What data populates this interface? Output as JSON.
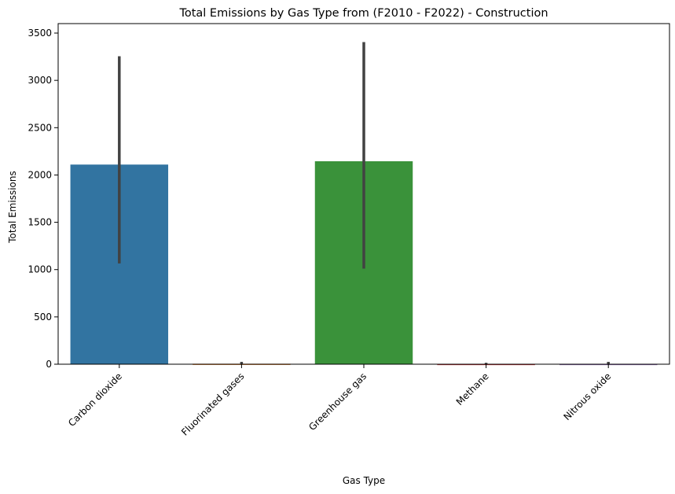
{
  "chart_data": {
    "type": "bar",
    "title": "Total Emissions by Gas Type from (F2010 - F2022) - Construction",
    "xlabel": "Gas Type",
    "ylabel": "Total Emissions",
    "categories": [
      "Carbon dioxide",
      "Fluorinated gases",
      "Greenhouse gas",
      "Methane",
      "Nitrous oxide"
    ],
    "values": [
      2110,
      5,
      2145,
      3,
      3
    ],
    "error_low": [
      1065,
      0,
      1010,
      0,
      0
    ],
    "error_high": [
      3255,
      25,
      3405,
      15,
      25
    ],
    "colors": [
      "#3274a1",
      "#e1812c",
      "#3a923a",
      "#c03d3e",
      "#9372b2"
    ],
    "ylim": [
      0,
      3600
    ],
    "yticks": [
      0,
      500,
      1000,
      1500,
      2000,
      2500,
      3000,
      3500
    ],
    "grid": false,
    "legend": "none",
    "errorbar_color": "#424242"
  }
}
